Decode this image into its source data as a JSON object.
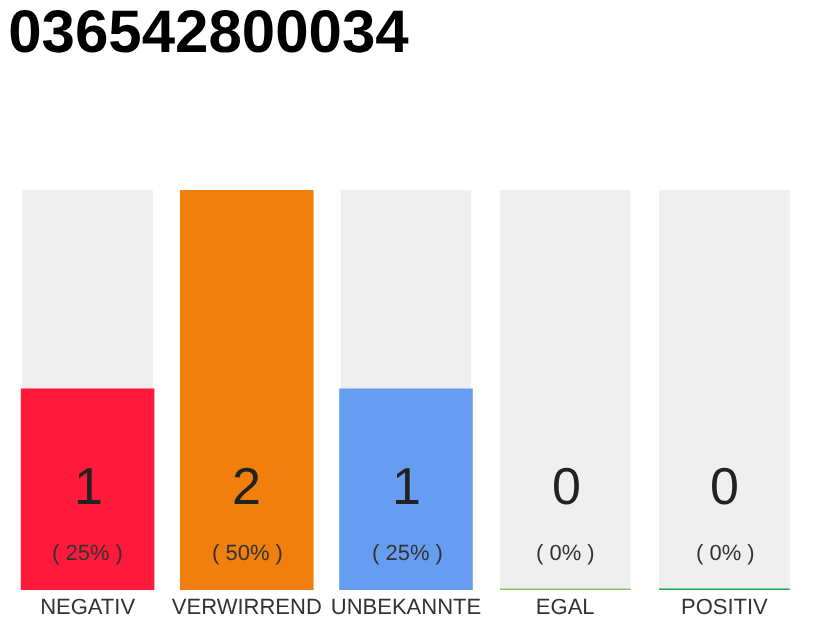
{
  "chart_data": {
    "type": "bar",
    "title": "036542800034",
    "categories": [
      "NEGATIV",
      "VERWIRREND",
      "UNBEKANNTE",
      "EGAL",
      "POSITIV"
    ],
    "values": [
      1,
      2,
      1,
      0,
      0
    ],
    "colors": [
      "#ff1a3c",
      "#f07f0e",
      "#679df0",
      "#8bc766",
      "#21a84a"
    ],
    "value_labels": [
      "1 ( 25% )",
      "2 ( 50% )",
      "1 ( 25% )",
      "0 ( 0% )",
      "0 ( 0% )"
    ],
    "grid": false,
    "legend": false
  }
}
